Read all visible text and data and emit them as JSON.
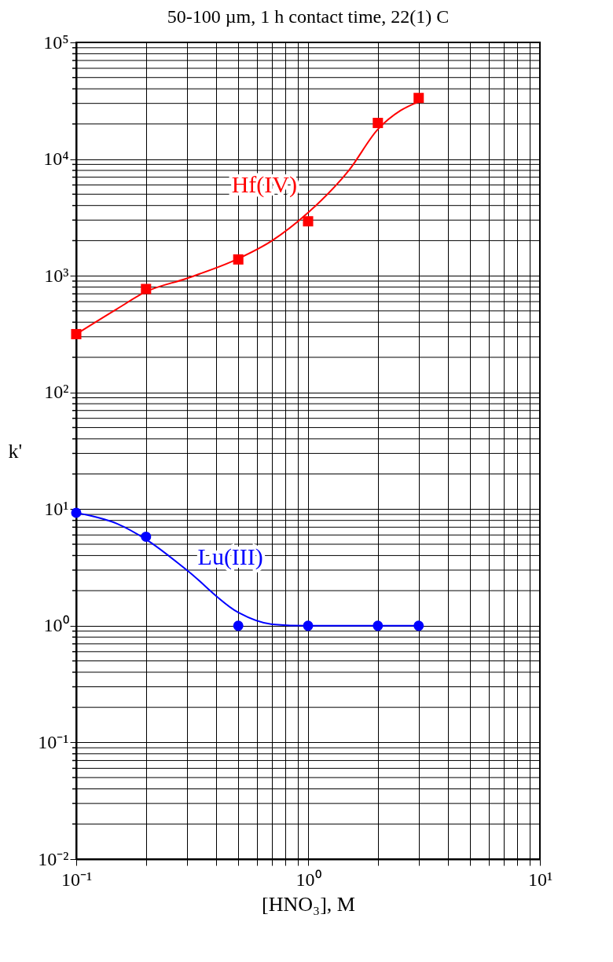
{
  "chart_data": {
    "type": "scatter",
    "title": "50-100 µm, 1 h contact time, 22(1) C",
    "xlabel": "[HNO₃], M",
    "ylabel": "k'",
    "log": "xy",
    "grid": true,
    "legend": false,
    "xlim": [
      0.1,
      10
    ],
    "ylim": [
      0.01,
      100000
    ],
    "xticks": [
      {
        "value": 0.1,
        "label": "10⁻¹"
      },
      {
        "value": 0.2,
        "label": null
      },
      {
        "value": 0.3,
        "label": null
      },
      {
        "value": 0.4,
        "label": null
      },
      {
        "value": 0.5,
        "label": null
      },
      {
        "value": 0.6,
        "label": null
      },
      {
        "value": 0.7,
        "label": null
      },
      {
        "value": 0.8,
        "label": null
      },
      {
        "value": 0.9,
        "label": null
      },
      {
        "value": 1,
        "label": "10⁰"
      },
      {
        "value": 2,
        "label": null
      },
      {
        "value": 3,
        "label": null
      },
      {
        "value": 4,
        "label": null
      },
      {
        "value": 5,
        "label": null
      },
      {
        "value": 6,
        "label": null
      },
      {
        "value": 7,
        "label": null
      },
      {
        "value": 8,
        "label": null
      },
      {
        "value": 9,
        "label": null
      },
      {
        "value": 10,
        "label": "10¹"
      }
    ],
    "yticks": [
      {
        "value": 0.01,
        "label": "10⁻²"
      },
      {
        "value": 0.1,
        "label": "10⁻¹"
      },
      {
        "value": 1,
        "label": "10⁰"
      },
      {
        "value": 10,
        "label": "10¹"
      },
      {
        "value": 100,
        "label": "10²"
      },
      {
        "value": 1000,
        "label": "10³"
      },
      {
        "value": 10000,
        "label": "10⁴"
      },
      {
        "value": 100000,
        "label": "10⁵"
      }
    ],
    "series": [
      {
        "marker": "square",
        "color": "#ff0000",
        "x": [
          0.1,
          0.2,
          0.5,
          1,
          2,
          3
        ],
        "values": [
          316,
          770,
          1380,
          2930,
          20400,
          33400
        ]
      },
      {
        "type": "line",
        "name": "Hf(IV)",
        "color": "#ff0000",
        "x": [
          0.1,
          0.15,
          0.2,
          0.3,
          0.5,
          0.7,
          1,
          1.5,
          2,
          2.5,
          3
        ],
        "values": [
          316,
          520,
          730,
          950,
          1400,
          2000,
          3470,
          8000,
          18000,
          26000,
          31000
        ]
      },
      {
        "marker": "circle",
        "color": "#0000ff",
        "x": [
          0.1,
          0.2,
          0.5,
          1,
          2,
          3
        ],
        "values": [
          9.3,
          5.8,
          1,
          1,
          1,
          1
        ]
      },
      {
        "type": "line",
        "name": "Lu(III)",
        "color": "#0000ff",
        "x": [
          0.1,
          0.15,
          0.2,
          0.3,
          0.5,
          0.7,
          1,
          2,
          3
        ],
        "values": [
          9.3,
          7.5,
          5.5,
          3,
          1.3,
          1.03,
          1,
          1,
          1
        ]
      }
    ]
  }
}
